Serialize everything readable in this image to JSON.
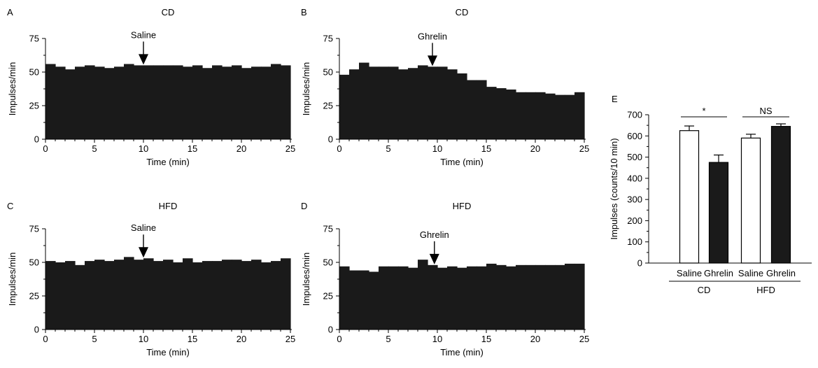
{
  "figure": {
    "colors": {
      "bar_fill": "#1a1a1a",
      "axis": "#000000",
      "open_bar": "#ffffff"
    }
  },
  "chart_data": [
    {
      "id": "A",
      "type": "bar",
      "panel_letter": "A",
      "title": "CD",
      "xlabel": "Time (min)",
      "ylabel": "Impulses/min",
      "xlim": [
        0,
        25
      ],
      "ylim": [
        0,
        75
      ],
      "xticks": [
        0,
        5,
        10,
        15,
        20,
        25
      ],
      "yticks": [
        0,
        25,
        50,
        75
      ],
      "bin_width_min": 0.833,
      "values": [
        56,
        54,
        52,
        54,
        55,
        54,
        53,
        54,
        56,
        55,
        55,
        55,
        55,
        55,
        54,
        55,
        53,
        55,
        54,
        55,
        53,
        54,
        54,
        56,
        55
      ],
      "annotation": {
        "text": "Saline",
        "x": 10
      }
    },
    {
      "id": "B",
      "type": "bar",
      "panel_letter": "B",
      "title": "CD",
      "xlabel": "Time (min)",
      "ylabel": "Impulses/min",
      "xlim": [
        0,
        25
      ],
      "ylim": [
        0,
        75
      ],
      "xticks": [
        0,
        5,
        10,
        15,
        20,
        25
      ],
      "yticks": [
        0,
        25,
        50,
        75
      ],
      "values": [
        48,
        52,
        57,
        54,
        54,
        54,
        52,
        53,
        55,
        54,
        54,
        52,
        49,
        44,
        44,
        39,
        38,
        37,
        35,
        35,
        35,
        34,
        33,
        33,
        35
      ],
      "annotation": {
        "text": "Ghrelin",
        "x": 9.5
      }
    },
    {
      "id": "C",
      "type": "bar",
      "panel_letter": "C",
      "title": "HFD",
      "xlabel": "Time (min)",
      "ylabel": "Impulses/min",
      "xlim": [
        0,
        25
      ],
      "ylim": [
        0,
        75
      ],
      "xticks": [
        0,
        5,
        10,
        15,
        20,
        25
      ],
      "yticks": [
        0,
        25,
        50,
        75
      ],
      "values": [
        51,
        50,
        51,
        48,
        51,
        52,
        51,
        52,
        54,
        52,
        53,
        51,
        52,
        50,
        53,
        50,
        51,
        51,
        52,
        52,
        51,
        52,
        50,
        51,
        53
      ],
      "annotation": {
        "text": "Saline",
        "x": 10
      }
    },
    {
      "id": "D",
      "type": "bar",
      "panel_letter": "D",
      "title": "HFD",
      "xlabel": "Time (min)",
      "ylabel": "Impulses/min",
      "xlim": [
        0,
        25
      ],
      "ylim": [
        0,
        75
      ],
      "xticks": [
        0,
        5,
        10,
        15,
        20,
        25
      ],
      "yticks": [
        0,
        25,
        50,
        75
      ],
      "values": [
        47,
        44,
        44,
        43,
        47,
        47,
        47,
        46,
        52,
        48,
        46,
        47,
        46,
        47,
        47,
        49,
        48,
        47,
        48,
        48,
        48,
        48,
        48,
        49,
        49
      ],
      "annotation": {
        "text": "Ghrelin",
        "x": 9.7
      }
    },
    {
      "id": "E",
      "type": "bar",
      "panel_letter": "E",
      "title": "",
      "xlabel": "",
      "ylabel": "Impulses (counts/10 min)",
      "ylim": [
        0,
        700
      ],
      "yticks": [
        0,
        100,
        200,
        300,
        400,
        500,
        600,
        700
      ],
      "categories": [
        "Saline",
        "Ghrelin",
        "Saline",
        "Ghrelin"
      ],
      "groups": [
        "CD",
        "HFD"
      ],
      "series": [
        {
          "values": [
            625,
            475,
            590,
            645
          ],
          "errors": [
            22,
            35,
            18,
            12
          ],
          "fills": [
            "open",
            "filled",
            "open",
            "filled"
          ]
        }
      ],
      "significance": [
        {
          "label": "*",
          "between": [
            0,
            1
          ]
        },
        {
          "label": "NS",
          "between": [
            2,
            3
          ]
        }
      ]
    }
  ]
}
